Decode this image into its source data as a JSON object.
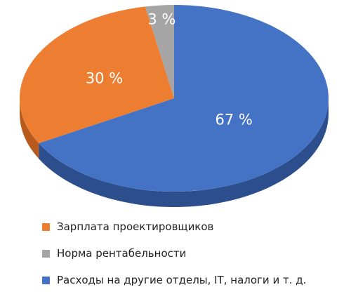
{
  "chart_data": {
    "type": "pie",
    "title": "",
    "legend_position": "bottom",
    "slices": [
      {
        "name": "Зарплата проектировщиков",
        "value": 30,
        "label": "30 %",
        "color": "#ED7D31",
        "side_color": "#B85A1D"
      },
      {
        "name": "Норма рентабельности",
        "value": 3,
        "label": "3 %",
        "color": "#A5A5A5",
        "side_color": "#7A7A7A"
      },
      {
        "name": "Расходы на другие отделы, IT, налоги и т. д.",
        "value": 67,
        "label": "67 %",
        "color": "#4472C4",
        "side_color": "#2C4E8C"
      }
    ]
  }
}
